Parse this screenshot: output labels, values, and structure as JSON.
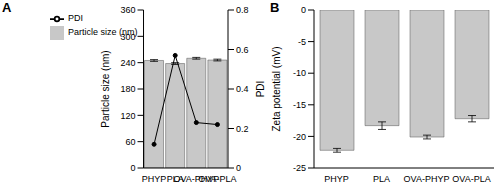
{
  "chart_data": [
    {
      "type": "bar",
      "title": "A",
      "categories": [
        "PHYP",
        "PLA",
        "OVA-PHYP",
        "OVA-PLA"
      ],
      "series": [
        {
          "name": "Particle size (nm)",
          "type": "bar",
          "color": "#c8c8c8",
          "values": [
            245,
            238,
            250,
            246
          ],
          "errors": [
            2,
            2,
            2,
            2
          ]
        },
        {
          "name": "PDI",
          "type": "line",
          "color": "#000000",
          "marker": "circle",
          "axis": "y2",
          "values": [
            0.12,
            0.57,
            0.23,
            0.22
          ]
        }
      ],
      "y_label": "Particle size (nm)",
      "y2_label": "PDI",
      "ylim": [
        0,
        360
      ],
      "yticks": [
        0,
        60,
        120,
        180,
        240,
        300,
        360
      ],
      "y2lim": [
        0,
        0.8
      ],
      "y2ticks": [
        0,
        0.2,
        0.4,
        0.6,
        0.8
      ],
      "legend": "upper left"
    },
    {
      "type": "bar",
      "title": "B",
      "categories": [
        "PHYP",
        "PLA",
        "OVA-PHYP",
        "OVA-PLA"
      ],
      "values": [
        -22.2,
        -18.3,
        -20.1,
        -17.2
      ],
      "errors": [
        0.3,
        0.6,
        0.3,
        0.5
      ],
      "color": "#c8c8c8",
      "y_label": "Zeta potential (mV)",
      "ylim": [
        -25,
        0
      ],
      "yticks": [
        -25,
        -20,
        -15,
        -10,
        -5,
        0
      ]
    }
  ]
}
